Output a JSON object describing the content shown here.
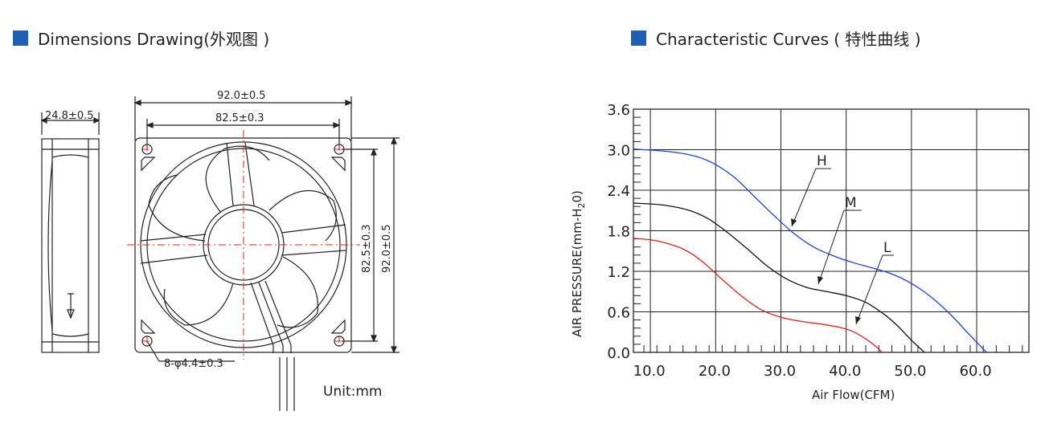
{
  "colors": {
    "accent": "#1d5fb4",
    "H": "#1f3fe6",
    "M": "#111111",
    "L": "#e02020",
    "centerline": "#e02020"
  },
  "dimensions": {
    "heading": "Dimensions Drawing(外观图 )",
    "thickness": "24.8±0.5",
    "overall_width": "92.0±0.5",
    "hole_spacing_width": "82.5±0.3",
    "hole_spacing_height": "82.5±0.3",
    "overall_height": "92.0±0.5",
    "holes": "8-φ4.4±0.3",
    "unit": "Unit:mm"
  },
  "chart": {
    "heading": "Characteristic Curves ( 特性曲线 )",
    "ylabel": "AIR PRESSURE(mm-H",
    "ylabel_sub": "2",
    "ylabel_tail": "0)",
    "xlabel": "Air Flow(CFM)",
    "curve_labels": [
      "H",
      "M",
      "L"
    ]
  },
  "chart_data": {
    "type": "line",
    "xlabel": "Air Flow(CFM)",
    "ylabel": "AIR PRESSURE(mm-H2O)",
    "xlim": [
      2.4,
      63.0
    ],
    "ylim": [
      0.0,
      3.6
    ],
    "x_ticks": [
      10.0,
      20.0,
      30.0,
      40.0,
      50.0,
      60.0
    ],
    "x_tick_labels": [
      "10.0",
      "20.0",
      "30.0",
      "40.0",
      "50.0",
      "60.0"
    ],
    "y_ticks": [
      0.0,
      0.6,
      1.2,
      1.8,
      2.4,
      3.0,
      3.6
    ],
    "y_tick_labels": [
      "0.0",
      "0.6",
      "1.2",
      "1.8",
      "2.4",
      "3.0",
      "3.6"
    ],
    "grid": true,
    "series": [
      {
        "name": "H",
        "x": [
          2.4,
          8.0,
          12.0,
          15.0,
          18.0,
          21.0,
          24.0,
          27.0,
          30.0,
          33.0,
          36.0,
          39.0,
          42.0,
          45.0,
          48.0,
          51.0,
          54.0,
          56.5
        ],
        "y": [
          3.01,
          2.97,
          2.9,
          2.78,
          2.58,
          2.3,
          2.02,
          1.76,
          1.56,
          1.43,
          1.33,
          1.25,
          1.16,
          1.02,
          0.82,
          0.56,
          0.25,
          0.0
        ]
      },
      {
        "name": "M",
        "x": [
          2.4,
          7.0,
          11.0,
          14.0,
          17.0,
          20.0,
          23.0,
          26.0,
          29.0,
          32.0,
          35.0,
          38.0,
          41.0,
          43.0,
          45.0,
          47.0
        ],
        "y": [
          2.21,
          2.18,
          2.1,
          1.97,
          1.76,
          1.52,
          1.27,
          1.08,
          0.96,
          0.9,
          0.84,
          0.74,
          0.55,
          0.38,
          0.18,
          0.0
        ]
      },
      {
        "name": "L",
        "x": [
          2.4,
          6.0,
          10.0,
          13.0,
          16.0,
          19.0,
          22.0,
          25.0,
          28.0,
          31.0,
          34.0,
          36.0,
          38.0,
          39.5,
          40.5
        ],
        "y": [
          1.69,
          1.65,
          1.53,
          1.34,
          1.08,
          0.83,
          0.63,
          0.52,
          0.46,
          0.42,
          0.37,
          0.31,
          0.2,
          0.09,
          0.0
        ]
      }
    ]
  }
}
